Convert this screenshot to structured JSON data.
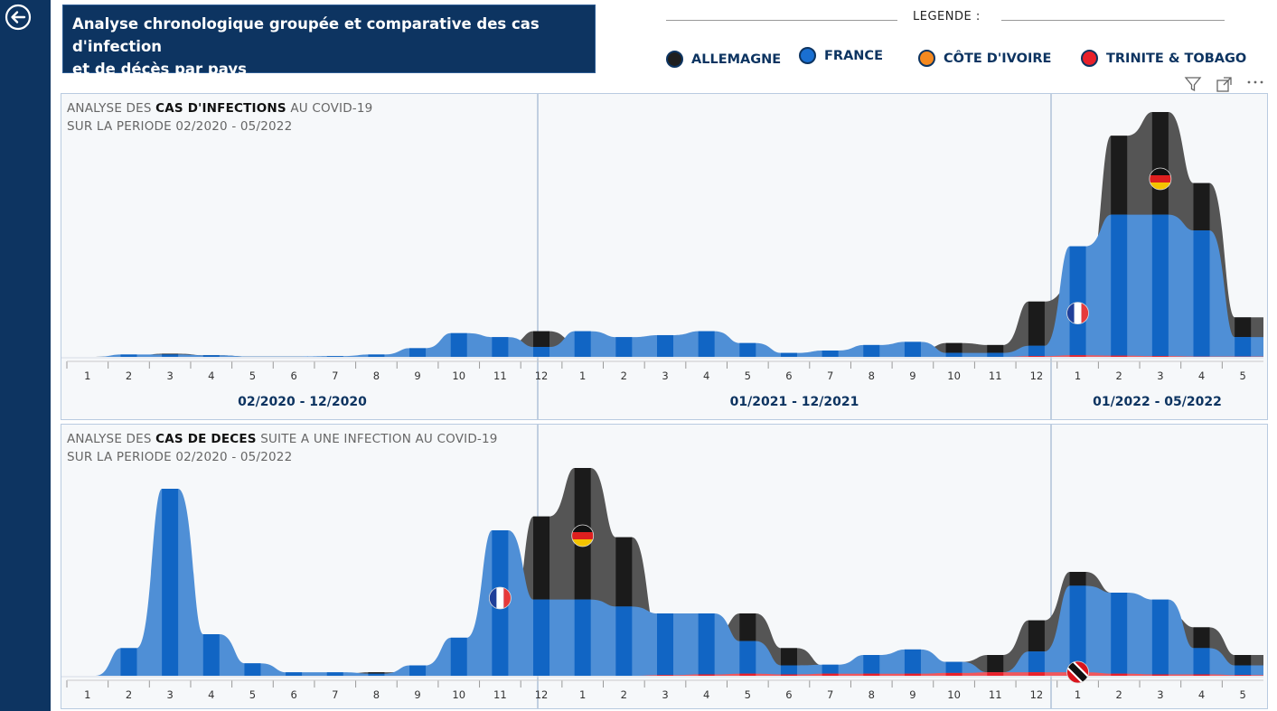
{
  "header": {
    "title_line1": "Analyse chronologique groupée et comparative des cas d'infection",
    "title_line2": "et de décès par pays"
  },
  "legend": {
    "title": "LEGENDE :",
    "items": [
      {
        "label": "ALLEMAGNE",
        "color": "#1e1e1e"
      },
      {
        "label": "FRANCE",
        "color": "#1a6fd1"
      },
      {
        "label": "CÔTE D'IVOIRE",
        "color": "#f5891f"
      },
      {
        "label": "TRINITE & TOBAGO",
        "color": "#e8202a"
      }
    ]
  },
  "toolbar": {
    "filter_icon": "filter-icon",
    "focus_icon": "focus-mode-icon",
    "more_icon": "more-options-icon"
  },
  "chart_data": [
    {
      "type": "area",
      "title_prefix": "ANALYSE DES ",
      "title_bold": "CAS D'INFECTIONS",
      "title_suffix": " AU COVID-19",
      "subtitle": "SUR LA PERIODE 02/2020 - 05/2022",
      "categories": [
        "1",
        "2",
        "3",
        "4",
        "5",
        "6",
        "7",
        "8",
        "9",
        "10",
        "11",
        "12",
        "1",
        "2",
        "3",
        "4",
        "5",
        "6",
        "7",
        "8",
        "9",
        "10",
        "11",
        "12",
        "1",
        "2",
        "3",
        "4",
        "5"
      ],
      "periods": [
        {
          "label": "02/2020 - 12/2020"
        },
        {
          "label": "01/2021 - 12/2021"
        },
        {
          "label": "01/2022 - 05/2022"
        }
      ],
      "series": [
        {
          "name": "ALLEMAGNE",
          "values": [
            0,
            0.4,
            0.8,
            0.4,
            0.1,
            0.1,
            0.1,
            0.2,
            0.4,
            1.5,
            3,
            6.5,
            3.5,
            2,
            3.5,
            3.8,
            2.2,
            0.3,
            0.3,
            0.6,
            1.8,
            3.5,
            3,
            14,
            18,
            56,
            62,
            44,
            10
          ]
        },
        {
          "name": "FRANCE",
          "values": [
            0,
            0.6,
            0.6,
            0.4,
            0.1,
            0.1,
            0.2,
            0.6,
            2.2,
            6,
            5,
            2.5,
            6.5,
            5,
            5.5,
            6.5,
            3.5,
            1,
            1.6,
            3,
            3.8,
            1,
            1,
            2.8,
            28,
            36,
            36,
            32,
            5
          ]
        },
        {
          "name": "CÔTE D'IVOIRE",
          "values": [
            0,
            0,
            0,
            0,
            0,
            0,
            0,
            0,
            0,
            0,
            0,
            0,
            0,
            0,
            0,
            0,
            0,
            0,
            0,
            0,
            0,
            0,
            0,
            0,
            0,
            0,
            0,
            0,
            0
          ]
        },
        {
          "name": "TRINITE & TOBAGO",
          "values": [
            0,
            0,
            0,
            0,
            0,
            0,
            0,
            0,
            0,
            0,
            0,
            0,
            0,
            0,
            0,
            0,
            0,
            0,
            0,
            0,
            0,
            0,
            0,
            0.2,
            0.4,
            0.3,
            0.2,
            0.1,
            0.1
          ]
        }
      ],
      "flag_markers": [
        {
          "country": "FRANCE",
          "category_index": 24
        },
        {
          "country": "ALLEMAGNE",
          "category_index": 26
        }
      ]
    },
    {
      "type": "area",
      "title_prefix": "ANALYSE DES ",
      "title_bold": "CAS DE DECES",
      "title_suffix": " SUITE A UNE INFECTION AU COVID-19",
      "subtitle": "SUR LA PERIODE 02/2020 - 05/2022",
      "categories": [
        "1",
        "2",
        "3",
        "4",
        "5",
        "6",
        "7",
        "8",
        "9",
        "10",
        "11",
        "12",
        "1",
        "2",
        "3",
        "4",
        "5",
        "6",
        "7",
        "8",
        "9",
        "10",
        "11",
        "12",
        "1",
        "2",
        "3",
        "4",
        "5"
      ],
      "series": [
        {
          "name": "ALLEMAGNE",
          "values": [
            0,
            0.5,
            6,
            2,
            0.6,
            0.4,
            0.3,
            0.5,
            0.6,
            1.8,
            6,
            23,
            30,
            20,
            6,
            6,
            9,
            4,
            1.5,
            1.5,
            2,
            2,
            3,
            8,
            15,
            12,
            9,
            7,
            3
          ]
        },
        {
          "name": "FRANCE",
          "values": [
            0,
            4,
            27,
            6,
            1.8,
            0.5,
            0.5,
            0.3,
            1.5,
            5.5,
            21,
            11,
            11,
            10,
            9,
            9,
            5,
            1.5,
            1.6,
            3,
            3.8,
            2,
            0.5,
            3.5,
            13,
            12,
            11,
            4,
            1.5
          ]
        },
        {
          "name": "CÔTE D'IVOIRE",
          "values": [
            0,
            0,
            0,
            0,
            0,
            0,
            0,
            0,
            0,
            0,
            0,
            0,
            0,
            0,
            0,
            0,
            0,
            0,
            0,
            0,
            0,
            0,
            0,
            0,
            0,
            0,
            0,
            0,
            0
          ]
        },
        {
          "name": "TRINITE & TOBAGO",
          "values": [
            0,
            0,
            0,
            0,
            0,
            0,
            0,
            0,
            0,
            0,
            0,
            0,
            0,
            0,
            0.1,
            0.2,
            0.3,
            0.2,
            0.3,
            0.3,
            0.3,
            0.4,
            0.5,
            0.5,
            0.5,
            0.3,
            0.2,
            0.2,
            0.1
          ]
        }
      ],
      "flag_markers": [
        {
          "country": "FRANCE",
          "category_index": 10
        },
        {
          "country": "ALLEMAGNE",
          "category_index": 12
        },
        {
          "country": "TRINITE & TOBAGO",
          "category_index": 24
        }
      ]
    }
  ]
}
